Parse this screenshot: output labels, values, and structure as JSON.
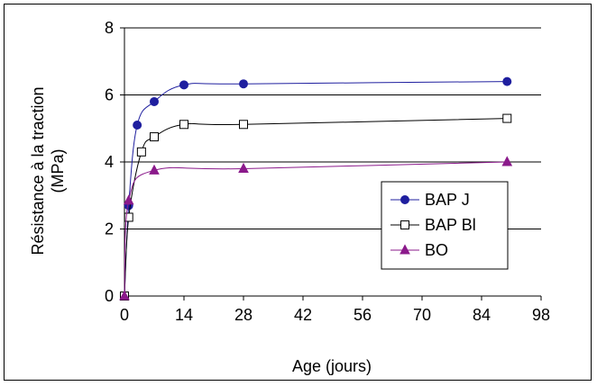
{
  "chart_data": {
    "type": "line",
    "title": "",
    "xlabel": "Age (jours)",
    "ylabel_lines": [
      "Résistance à la traction",
      "(MPa)"
    ],
    "xlim": [
      0,
      98
    ],
    "ylim": [
      0,
      8
    ],
    "xticks": [
      0,
      14,
      28,
      42,
      56,
      70,
      84,
      98
    ],
    "yticks": [
      0,
      2,
      4,
      6,
      8
    ],
    "grid": "horizontal",
    "legend_position": "right",
    "series": [
      {
        "name": "BAP J",
        "marker": "filled-circle",
        "color": "#1f1f9f",
        "x": [
          0,
          1,
          3,
          7,
          14,
          28,
          90
        ],
        "y": [
          0,
          2.7,
          5.1,
          5.8,
          6.3,
          6.33,
          6.4
        ]
      },
      {
        "name": "BAP Bl",
        "marker": "open-square",
        "color": "#000000",
        "x": [
          0,
          1,
          4,
          7,
          14,
          28,
          90
        ],
        "y": [
          0,
          2.35,
          4.3,
          4.75,
          5.12,
          5.12,
          5.3
        ]
      },
      {
        "name": "BO",
        "marker": "filled-triangle",
        "color": "#8b1a8b",
        "x": [
          0,
          1,
          7,
          28,
          90
        ],
        "y": [
          0,
          2.85,
          3.75,
          3.8,
          4.0
        ]
      }
    ]
  }
}
